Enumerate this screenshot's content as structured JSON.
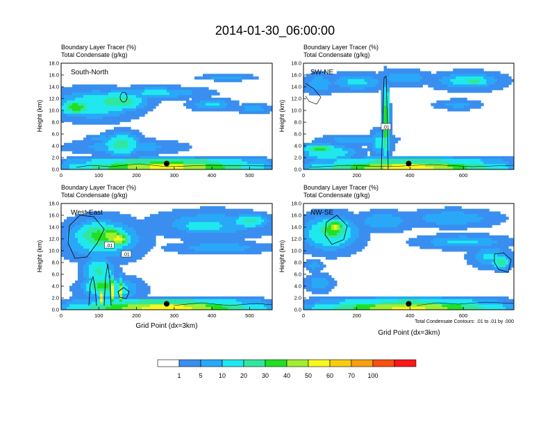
{
  "title": "2014-01-30_06:00:00",
  "colors": {
    "levels": [
      "#ffffff",
      "#3a8ef0",
      "#29a8f8",
      "#1fe8ee",
      "#30e7a0",
      "#20e020",
      "#a0ee30",
      "#f8f820",
      "#f8cc10",
      "#f8a010",
      "#f85010",
      "#f81818"
    ]
  },
  "colorbar": {
    "labels": [
      "1",
      "5",
      "10",
      "20",
      "30",
      "40",
      "50",
      "60",
      "70",
      "100"
    ]
  },
  "footnote": "Total Condensate Contours: .01 to .01 by .000",
  "chart_data": [
    {
      "type": "heatmap",
      "panel_label": "South-North",
      "header_line1": "Boundary Layer Tracer    (%)",
      "header_line2": "Total Condensate    (g/kg)",
      "ylabel": "Height (km)",
      "xlabel": "",
      "xlim": [
        0,
        560
      ],
      "ylim": [
        0,
        18
      ],
      "xticks": [
        0,
        100,
        200,
        300,
        400,
        500
      ],
      "xtick_labels": [
        "0",
        "100",
        "200",
        "300",
        "400",
        "500"
      ],
      "yticks": [
        0,
        2,
        4,
        6,
        8,
        10,
        12,
        14,
        16,
        18
      ],
      "ytick_labels": [
        "0.0",
        "2.0",
        "4.0",
        "6.0",
        "8.0",
        "10.0",
        "12.0",
        "14.0",
        "16.0",
        "18.0"
      ],
      "marker": {
        "x": 280,
        "y": 1.0
      },
      "contour_labels": [],
      "blobs": [
        {
          "x": 280,
          "y": 0.5,
          "rx": 300,
          "ry": 0.7,
          "v": 60
        },
        {
          "x": 280,
          "y": 0.4,
          "rx": 300,
          "ry": 0.4,
          "v": 80
        },
        {
          "x": 280,
          "y": 1.3,
          "rx": 300,
          "ry": 0.8,
          "v": 35
        },
        {
          "x": 90,
          "y": 11.0,
          "rx": 130,
          "ry": 3.0,
          "v": 18
        },
        {
          "x": 150,
          "y": 11.5,
          "rx": 90,
          "ry": 2.0,
          "v": 30
        },
        {
          "x": 40,
          "y": 10.5,
          "rx": 50,
          "ry": 1.6,
          "v": 40
        },
        {
          "x": 250,
          "y": 13.0,
          "rx": 160,
          "ry": 1.2,
          "v": 12
        },
        {
          "x": 440,
          "y": 15.6,
          "rx": 90,
          "ry": 0.6,
          "v": 8
        },
        {
          "x": 400,
          "y": 11.0,
          "rx": 70,
          "ry": 1.2,
          "v": 12
        },
        {
          "x": 510,
          "y": 10.3,
          "rx": 60,
          "ry": 0.9,
          "v": 8
        },
        {
          "x": 170,
          "y": 3.8,
          "rx": 170,
          "ry": 1.5,
          "v": 10
        },
        {
          "x": 160,
          "y": 4.2,
          "rx": 60,
          "ry": 2.4,
          "v": 25
        },
        {
          "x": 110,
          "y": 5.2,
          "rx": 50,
          "ry": 0.8,
          "v": 10
        }
      ]
    },
    {
      "type": "heatmap",
      "panel_label": "SW-NE",
      "header_line1": "Boundary Layer Tracer    (%)",
      "header_line2": "Total Condensate    (g/kg)",
      "ylabel": "Height (km)",
      "xlabel": "",
      "xlim": [
        0,
        790
      ],
      "ylim": [
        0,
        18
      ],
      "xticks": [
        0,
        200,
        400,
        600
      ],
      "xtick_labels": [
        "0",
        "200",
        "400",
        "600"
      ],
      "yticks": [
        0,
        2,
        4,
        6,
        8,
        10,
        12,
        14,
        16,
        18
      ],
      "ytick_labels": [
        "0.0",
        "2.0",
        "4.0",
        "6.0",
        "8.0",
        "10.0",
        "12.0",
        "14.0",
        "16.0",
        "18.0"
      ],
      "marker": {
        "x": 395,
        "y": 1.0
      },
      "contour_labels": [
        {
          "x": 310,
          "y": 7.2,
          "text": ".01"
        }
      ],
      "blobs": [
        {
          "x": 395,
          "y": 0.5,
          "rx": 420,
          "ry": 0.7,
          "v": 60
        },
        {
          "x": 395,
          "y": 0.4,
          "rx": 420,
          "ry": 0.4,
          "v": 85
        },
        {
          "x": 395,
          "y": 1.3,
          "rx": 420,
          "ry": 0.9,
          "v": 30
        },
        {
          "x": 90,
          "y": 2.8,
          "rx": 130,
          "ry": 1.6,
          "v": 20
        },
        {
          "x": 60,
          "y": 3.5,
          "rx": 80,
          "ry": 1.0,
          "v": 35
        },
        {
          "x": 200,
          "y": 5.0,
          "rx": 160,
          "ry": 1.0,
          "v": 10
        },
        {
          "x": 60,
          "y": 14.5,
          "rx": 70,
          "ry": 2.0,
          "v": 10
        },
        {
          "x": 200,
          "y": 14.8,
          "rx": 130,
          "ry": 1.8,
          "v": 12
        },
        {
          "x": 380,
          "y": 15.5,
          "rx": 120,
          "ry": 1.5,
          "v": 10
        },
        {
          "x": 620,
          "y": 15.0,
          "rx": 150,
          "ry": 1.8,
          "v": 15
        },
        {
          "x": 640,
          "y": 15.0,
          "rx": 70,
          "ry": 1.0,
          "v": 30
        },
        {
          "x": 580,
          "y": 11.0,
          "rx": 100,
          "ry": 1.0,
          "v": 8
        },
        {
          "x": 310,
          "y": 8.0,
          "rx": 14,
          "ry": 7.5,
          "v": 45
        },
        {
          "x": 310,
          "y": 9.0,
          "rx": 8,
          "ry": 6.5,
          "v": 52
        },
        {
          "x": 290,
          "y": 4.5,
          "rx": 50,
          "ry": 2.6,
          "v": 14
        }
      ]
    },
    {
      "type": "heatmap",
      "panel_label": "West-East",
      "header_line1": "Boundary Layer Tracer    (%)",
      "header_line2": "Total Condensate    (g/kg)",
      "ylabel": "Height (km)",
      "xlabel": "Grid Point (dx=3km)",
      "xlim": [
        0,
        560
      ],
      "ylim": [
        0,
        18
      ],
      "xticks": [
        0,
        100,
        200,
        300,
        400,
        500
      ],
      "xtick_labels": [
        "0",
        "100",
        "200",
        "300",
        "400",
        "500"
      ],
      "yticks": [
        0,
        2,
        4,
        6,
        8,
        10,
        12,
        14,
        16,
        18
      ],
      "ytick_labels": [
        "0.0",
        "2.0",
        "4.0",
        "6.0",
        "8.0",
        "10.0",
        "12.0",
        "14.0",
        "16.0",
        "18.0"
      ],
      "marker": {
        "x": 280,
        "y": 1.0
      },
      "contour_labels": [
        {
          "x": 128,
          "y": 10.9,
          "text": ".01"
        },
        {
          "x": 173,
          "y": 9.4,
          "text": ".01"
        }
      ],
      "blobs": [
        {
          "x": 280,
          "y": 0.5,
          "rx": 300,
          "ry": 0.7,
          "v": 60
        },
        {
          "x": 280,
          "y": 0.4,
          "rx": 300,
          "ry": 0.4,
          "v": 85
        },
        {
          "x": 280,
          "y": 1.3,
          "rx": 300,
          "ry": 0.8,
          "v": 30
        },
        {
          "x": 110,
          "y": 12.0,
          "rx": 120,
          "ry": 4.0,
          "v": 20
        },
        {
          "x": 100,
          "y": 12.5,
          "rx": 80,
          "ry": 3.0,
          "v": 35
        },
        {
          "x": 130,
          "y": 12.5,
          "rx": 50,
          "ry": 2.0,
          "v": 50
        },
        {
          "x": 150,
          "y": 12.0,
          "rx": 40,
          "ry": 1.5,
          "v": 60
        },
        {
          "x": 130,
          "y": 3.5,
          "rx": 90,
          "ry": 2.4,
          "v": 20
        },
        {
          "x": 110,
          "y": 4.0,
          "rx": 60,
          "ry": 2.0,
          "v": 35
        },
        {
          "x": 100,
          "y": 6.5,
          "rx": 50,
          "ry": 3.0,
          "v": 22
        },
        {
          "x": 108,
          "y": 2.0,
          "rx": 6,
          "ry": 2.0,
          "v": 70
        },
        {
          "x": 138,
          "y": 3.0,
          "rx": 6,
          "ry": 3.2,
          "v": 70
        },
        {
          "x": 160,
          "y": 3.0,
          "rx": 6,
          "ry": 3.0,
          "v": 60
        },
        {
          "x": 130,
          "y": 4.5,
          "rx": 16,
          "ry": 4.0,
          "v": 8
        },
        {
          "x": 400,
          "y": 14.5,
          "rx": 190,
          "ry": 2.8,
          "v": 10
        },
        {
          "x": 380,
          "y": 14.2,
          "rx": 90,
          "ry": 1.6,
          "v": 18
        },
        {
          "x": 500,
          "y": 15.0,
          "rx": 60,
          "ry": 1.5,
          "v": 22
        },
        {
          "x": 420,
          "y": 10.5,
          "rx": 150,
          "ry": 1.2,
          "v": 10
        }
      ]
    },
    {
      "type": "heatmap",
      "panel_label": "NW-SE",
      "header_line1": "Boundary Layer Tracer    (%)",
      "header_line2": "Total Condensate    (g/kg)",
      "ylabel": "Height (km)",
      "xlabel": "Grid Point (dx=3km)",
      "xlim": [
        0,
        790
      ],
      "ylim": [
        0,
        18
      ],
      "xticks": [
        0,
        200,
        400,
        600
      ],
      "xtick_labels": [
        "0",
        "200",
        "400",
        "600"
      ],
      "yticks": [
        0,
        2,
        4,
        6,
        8,
        10,
        12,
        14,
        16,
        18
      ],
      "ytick_labels": [
        "0.0",
        "2.0",
        "4.0",
        "6.0",
        "8.0",
        "10.0",
        "12.0",
        "14.0",
        "16.0",
        "18.0"
      ],
      "marker": {
        "x": 395,
        "y": 1.0
      },
      "contour_labels": [],
      "blobs": [
        {
          "x": 395,
          "y": 0.5,
          "rx": 420,
          "ry": 0.7,
          "v": 55
        },
        {
          "x": 395,
          "y": 0.4,
          "rx": 420,
          "ry": 0.4,
          "v": 80
        },
        {
          "x": 395,
          "y": 1.3,
          "rx": 420,
          "ry": 0.9,
          "v": 25
        },
        {
          "x": 100,
          "y": 13.0,
          "rx": 130,
          "ry": 3.6,
          "v": 22
        },
        {
          "x": 110,
          "y": 13.5,
          "rx": 80,
          "ry": 2.4,
          "v": 40
        },
        {
          "x": 120,
          "y": 14.0,
          "rx": 40,
          "ry": 1.6,
          "v": 55
        },
        {
          "x": 300,
          "y": 15.0,
          "rx": 130,
          "ry": 2.0,
          "v": 10
        },
        {
          "x": 560,
          "y": 15.5,
          "rx": 200,
          "ry": 1.8,
          "v": 10
        },
        {
          "x": 600,
          "y": 11.5,
          "rx": 200,
          "ry": 1.4,
          "v": 12
        },
        {
          "x": 700,
          "y": 9.0,
          "rx": 90,
          "ry": 2.2,
          "v": 12
        },
        {
          "x": 740,
          "y": 8.0,
          "rx": 40,
          "ry": 1.4,
          "v": 30
        },
        {
          "x": 60,
          "y": 4.5,
          "rx": 60,
          "ry": 1.8,
          "v": 10
        },
        {
          "x": 40,
          "y": 7.5,
          "rx": 40,
          "ry": 1.2,
          "v": 8
        }
      ]
    }
  ]
}
